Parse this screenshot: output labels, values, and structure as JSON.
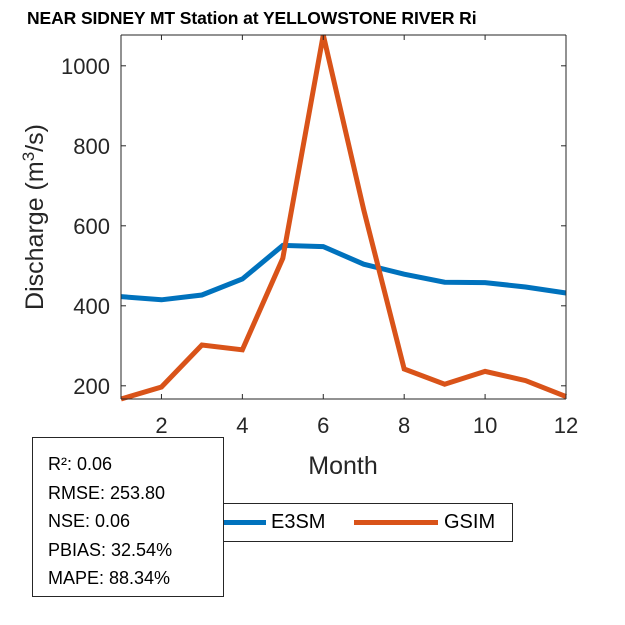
{
  "chart_data": {
    "type": "line",
    "title": "NEAR SIDNEY MT  Station at  YELLOWSTONE RIVER  Ri",
    "xlabel": "Month",
    "ylabel": "Discharge (m³/s)",
    "ylabel_parts": {
      "before": "Discharge (m",
      "sup": "3",
      "after": "/s)"
    },
    "x": [
      1,
      2,
      3,
      4,
      5,
      6,
      7,
      8,
      9,
      10,
      11,
      12
    ],
    "xlim": [
      1,
      12
    ],
    "ylim": [
      167,
      1077
    ],
    "xticks": [
      2,
      4,
      6,
      8,
      10,
      12
    ],
    "yticks": [
      200,
      400,
      600,
      800,
      1000
    ],
    "grid": false,
    "series": [
      {
        "name": "E3SM",
        "color": "#0072BD",
        "values": [
          423,
          415,
          427,
          467,
          551,
          548,
          504,
          479,
          459,
          458,
          447,
          432
        ]
      },
      {
        "name": "GSIM",
        "color": "#D95319",
        "values": [
          167,
          197,
          302,
          290,
          519,
          1077,
          640,
          242,
          204,
          236,
          213,
          173
        ]
      }
    ],
    "legend": {
      "placement": "bottom-center",
      "orientation": "horizontal"
    }
  },
  "stats": [
    "R²: 0.06",
    "RMSE: 253.80",
    "NSE: 0.06",
    "PBIAS: 32.54%",
    "MAPE: 88.34%"
  ]
}
